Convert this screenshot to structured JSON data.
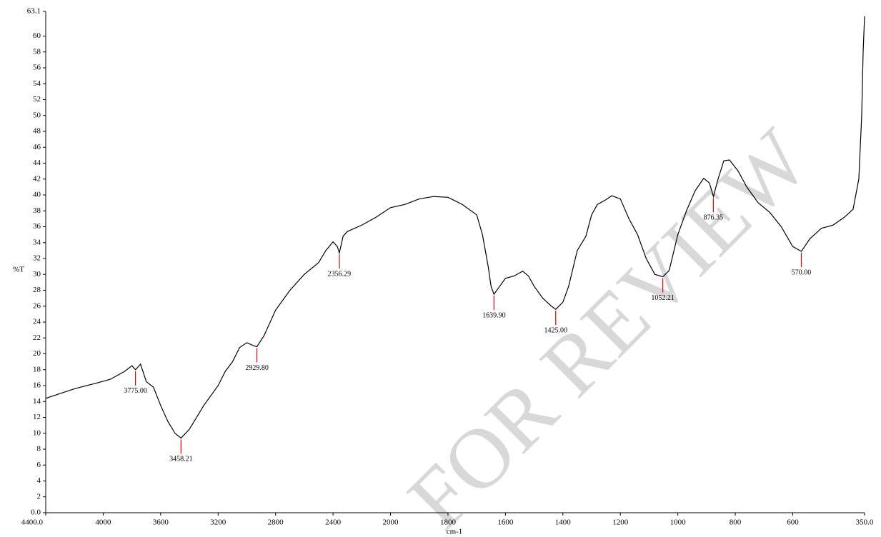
{
  "chart_data": {
    "type": "line",
    "xlabel": "cm-1",
    "ylabel": "%T",
    "watermark": "FOR REVIEW",
    "color": "#000000",
    "annotation_color": "#e00000",
    "xlim": [
      4400,
      350
    ],
    "x_scale_break": 2000,
    "x_scale_ratio": 2,
    "ylim": [
      0,
      63.1
    ],
    "xticks": [
      {
        "value": 4400,
        "label": "4400.0"
      },
      4000,
      3600,
      3200,
      2800,
      2400,
      2000,
      1800,
      1600,
      1400,
      1200,
      1000,
      800,
      600,
      {
        "value": 350,
        "label": "350.0"
      }
    ],
    "yticks": [
      {
        "value": 0,
        "label": "0.0"
      },
      2,
      4,
      6,
      8,
      10,
      12,
      14,
      16,
      18,
      20,
      22,
      24,
      26,
      28,
      30,
      32,
      34,
      36,
      38,
      40,
      42,
      44,
      46,
      48,
      50,
      52,
      54,
      56,
      58,
      60,
      63.1
    ],
    "x": [
      4400,
      4200,
      4050,
      3950,
      3850,
      3800,
      3775,
      3740,
      3700,
      3650,
      3600,
      3550,
      3500,
      3458,
      3400,
      3300,
      3200,
      3150,
      3100,
      3050,
      3000,
      2950,
      2930,
      2880,
      2850,
      2800,
      2700,
      2600,
      2500,
      2450,
      2400,
      2370,
      2356,
      2330,
      2300,
      2200,
      2100,
      2000,
      1950,
      1900,
      1850,
      1800,
      1750,
      1700,
      1680,
      1660,
      1650,
      1640,
      1620,
      1600,
      1570,
      1540,
      1520,
      1500,
      1470,
      1440,
      1425,
      1400,
      1380,
      1350,
      1320,
      1300,
      1280,
      1250,
      1230,
      1200,
      1170,
      1140,
      1110,
      1080,
      1052,
      1030,
      1000,
      970,
      940,
      910,
      890,
      876,
      860,
      840,
      820,
      790,
      760,
      720,
      680,
      640,
      600,
      570,
      540,
      500,
      460,
      420,
      390,
      370,
      360,
      355,
      350
    ],
    "values": [
      14.4,
      15.6,
      16.3,
      16.8,
      17.8,
      18.5,
      18.0,
      18.7,
      16.5,
      15.8,
      13.5,
      11.5,
      10.0,
      9.4,
      10.5,
      13.5,
      16.0,
      17.8,
      19.0,
      20.8,
      21.4,
      21.0,
      20.9,
      22.3,
      23.5,
      25.5,
      28.0,
      30.0,
      31.5,
      33.0,
      34.1,
      33.5,
      32.7,
      34.8,
      35.4,
      36.2,
      37.2,
      38.4,
      38.8,
      39.5,
      39.8,
      39.7,
      38.8,
      37.5,
      35.0,
      31.0,
      28.5,
      27.5,
      28.5,
      29.5,
      29.8,
      30.4,
      29.8,
      28.5,
      27.0,
      26.0,
      25.6,
      26.5,
      28.5,
      33.0,
      34.8,
      37.5,
      38.8,
      39.4,
      39.9,
      39.5,
      37.0,
      35.0,
      32.0,
      30.0,
      29.7,
      30.5,
      35.0,
      38.0,
      40.5,
      42.1,
      41.5,
      39.8,
      42.0,
      44.3,
      44.4,
      43.0,
      41.0,
      39.0,
      37.8,
      36.0,
      33.5,
      32.9,
      34.5,
      35.8,
      36.2,
      37.2,
      38.2,
      42.0,
      50.0,
      58.0,
      62.5
    ],
    "annotations": [
      {
        "label": "3775.00",
        "x": 3775,
        "y": 18.0
      },
      {
        "label": "3458.21",
        "x": 3458.21,
        "y": 9.4
      },
      {
        "label": "2929.80",
        "x": 2929.8,
        "y": 20.9
      },
      {
        "label": "2356.29",
        "x": 2356.29,
        "y": 32.7
      },
      {
        "label": "1639.90",
        "x": 1639.9,
        "y": 27.5
      },
      {
        "label": "1425.00",
        "x": 1425,
        "y": 25.6
      },
      {
        "label": "1052.21",
        "x": 1052.21,
        "y": 29.7
      },
      {
        "label": "876.35",
        "x": 876.35,
        "y": 39.8
      },
      {
        "label": "570.00",
        "x": 570,
        "y": 32.9
      }
    ]
  }
}
